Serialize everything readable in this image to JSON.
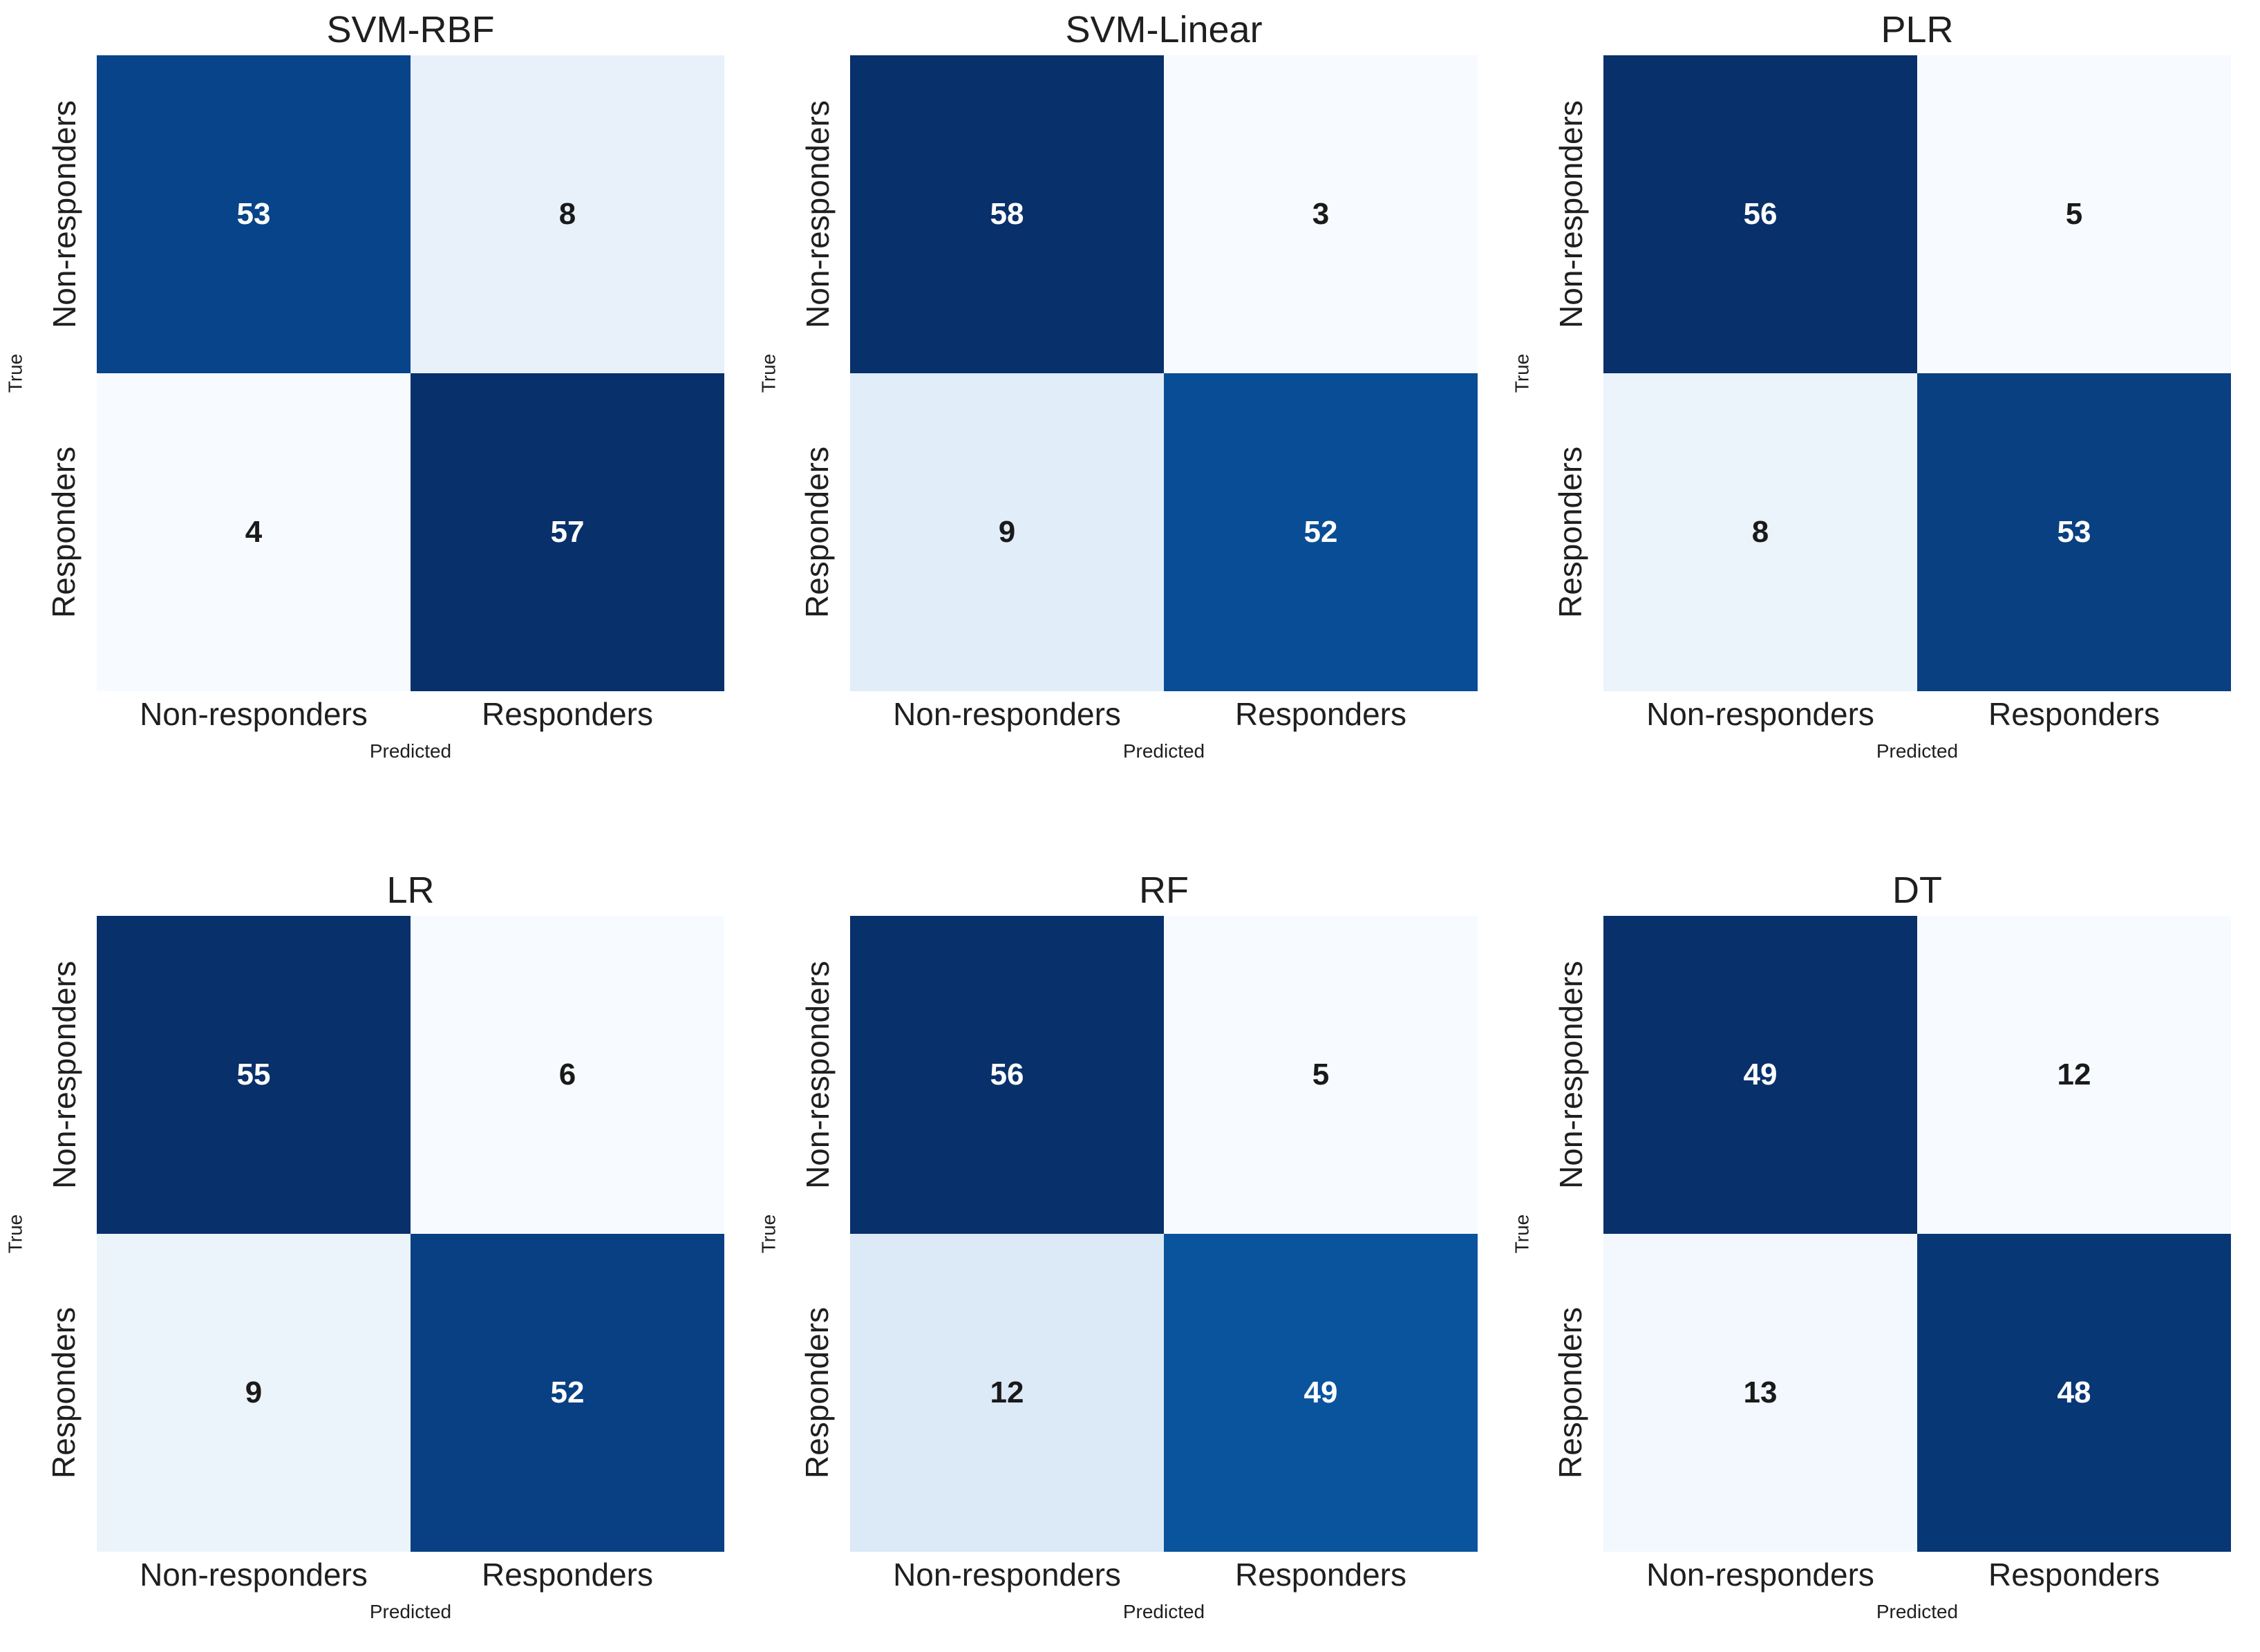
{
  "figure": {
    "background": "#ffffff",
    "text_color": "#1f1f1f",
    "xlabel": "Predicted",
    "ylabel": "True",
    "classes": [
      "Non-responders",
      "Responders"
    ],
    "colormap_name": "Blues",
    "colormap_stops": [
      "#f7fbff",
      "#deebf7",
      "#c6dbef",
      "#9ecae1",
      "#6baed6",
      "#4292c6",
      "#2171b5",
      "#08519c",
      "#08306b"
    ]
  },
  "chart_data": [
    {
      "type": "heatmap",
      "title": "SVM-RBF",
      "xlabel": "Predicted",
      "ylabel": "True",
      "x": [
        "Non-responders",
        "Responders"
      ],
      "y": [
        "Non-responders",
        "Responders"
      ],
      "values": [
        [
          53,
          8
        ],
        [
          4,
          57
        ]
      ],
      "legend_position": "none",
      "grid": false
    },
    {
      "type": "heatmap",
      "title": "SVM-Linear",
      "xlabel": "Predicted",
      "ylabel": "True",
      "x": [
        "Non-responders",
        "Responders"
      ],
      "y": [
        "Non-responders",
        "Responders"
      ],
      "values": [
        [
          58,
          3
        ],
        [
          9,
          52
        ]
      ],
      "legend_position": "none",
      "grid": false
    },
    {
      "type": "heatmap",
      "title": "PLR",
      "xlabel": "Predicted",
      "ylabel": "True",
      "x": [
        "Non-responders",
        "Responders"
      ],
      "y": [
        "Non-responders",
        "Responders"
      ],
      "values": [
        [
          56,
          5
        ],
        [
          8,
          53
        ]
      ],
      "legend_position": "none",
      "grid": false
    },
    {
      "type": "heatmap",
      "title": "LR",
      "xlabel": "Predicted",
      "ylabel": "True",
      "x": [
        "Non-responders",
        "Responders"
      ],
      "y": [
        "Non-responders",
        "Responders"
      ],
      "values": [
        [
          55,
          6
        ],
        [
          9,
          52
        ]
      ],
      "legend_position": "none",
      "grid": false
    },
    {
      "type": "heatmap",
      "title": "RF",
      "xlabel": "Predicted",
      "ylabel": "True",
      "x": [
        "Non-responders",
        "Responders"
      ],
      "y": [
        "Non-responders",
        "Responders"
      ],
      "values": [
        [
          56,
          5
        ],
        [
          12,
          49
        ]
      ],
      "legend_position": "none",
      "grid": false
    },
    {
      "type": "heatmap",
      "title": "DT",
      "xlabel": "Predicted",
      "ylabel": "True",
      "x": [
        "Non-responders",
        "Responders"
      ],
      "y": [
        "Non-responders",
        "Responders"
      ],
      "values": [
        [
          49,
          12
        ],
        [
          13,
          48
        ]
      ],
      "legend_position": "none",
      "grid": false
    }
  ]
}
